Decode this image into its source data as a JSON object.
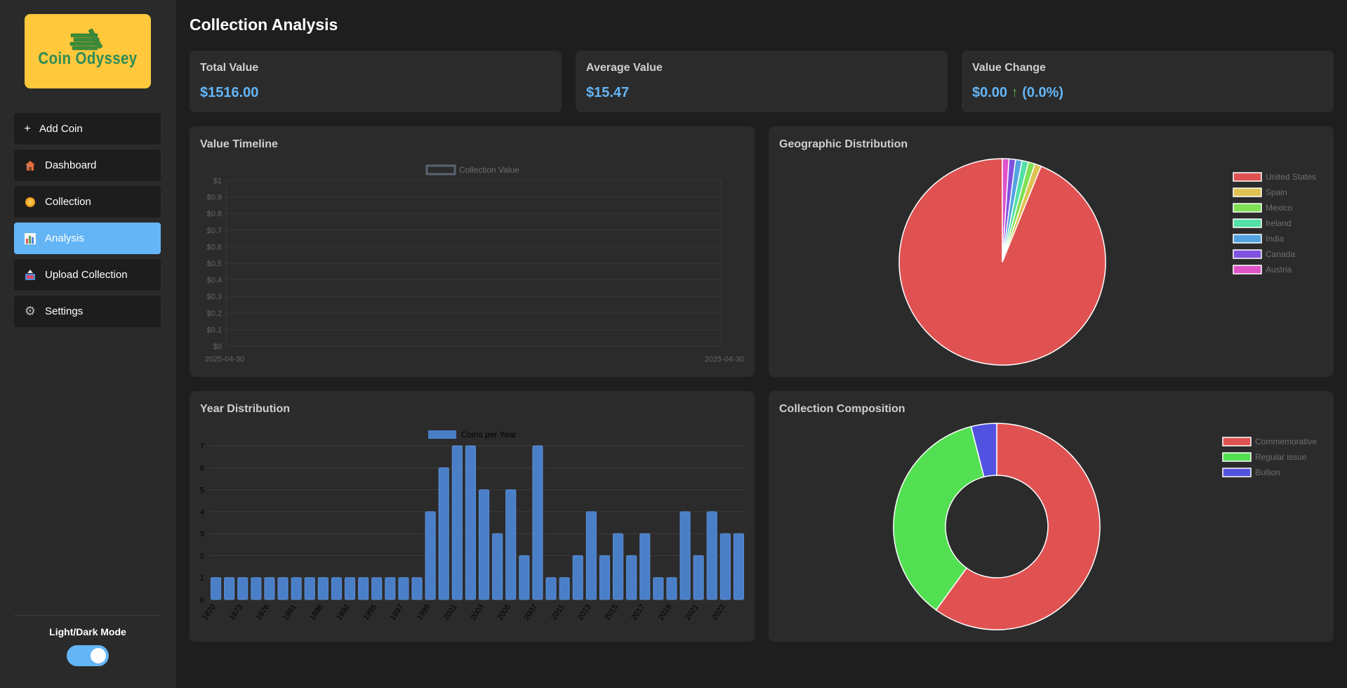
{
  "sidebar": {
    "logo_text": "Coin Odyssey",
    "items": [
      {
        "label": "Add Coin",
        "icon": "plus-icon",
        "glyph": "+"
      },
      {
        "label": "Dashboard",
        "icon": "house-icon",
        "glyph": "🏠"
      },
      {
        "label": "Collection",
        "icon": "coin-icon",
        "glyph": ""
      },
      {
        "label": "Analysis",
        "icon": "bar-chart-icon",
        "glyph": ""
      },
      {
        "label": "Upload Collection",
        "icon": "upload-icon",
        "glyph": ""
      },
      {
        "label": "Settings",
        "icon": "gear-icon",
        "glyph": "⚙"
      }
    ],
    "active_item": "Analysis",
    "mode_label": "Light/Dark Mode",
    "dark_mode_on": true
  },
  "page_title": "Collection Analysis",
  "stats": {
    "total_label": "Total Value",
    "total_value": "$1516.00",
    "average_label": "Average Value",
    "average_value": "$15.47",
    "change_label": "Value Change",
    "change_amount": "$0.00",
    "change_arrow": "↑",
    "change_percent": "(0.0%)"
  },
  "colors": {
    "accent": "#64b5f6",
    "card_bg": "#2b2b2b",
    "page_bg": "#1e1e1e",
    "positive": "#4caf50",
    "logo_bg": "#ffc83d",
    "logo_text": "#2e8b57"
  },
  "cards": {
    "timeline_title": "Value Timeline",
    "geo_title": "Geographic Distribution",
    "year_title": "Year Distribution",
    "composition_title": "Collection Composition"
  },
  "chart_data": [
    {
      "type": "line",
      "title": "Value Timeline",
      "legend": [
        "Collection Value"
      ],
      "legend_position": "top",
      "x_labels": [
        "2025-04-30",
        "2025-04-30"
      ],
      "series": [
        {
          "name": "Collection Value",
          "values": []
        }
      ],
      "ylim": [
        0,
        1
      ],
      "y_ticks": [
        "$0",
        "$0.1",
        "$0.2",
        "$0.3",
        "$0.4",
        "$0.5",
        "$0.6",
        "$0.7",
        "$0.8",
        "$0.9",
        "$1"
      ],
      "grid": true
    },
    {
      "type": "pie",
      "title": "Geographic Distribution",
      "legend_position": "right",
      "labels": [
        "United States",
        "Spain",
        "Mexico",
        "Ireland",
        "India",
        "Canada",
        "Austria"
      ],
      "values": [
        92,
        1,
        1,
        1,
        1,
        1,
        1
      ],
      "colors": [
        "#e05252",
        "#e0c252",
        "#7ee052",
        "#52e0a6",
        "#52a3e0",
        "#8052e0",
        "#e052c8"
      ]
    },
    {
      "type": "bar",
      "title": "Year Distribution",
      "legend": [
        "Coins per Year"
      ],
      "legend_position": "top",
      "series_name": "Coins per Year",
      "categories": [
        "1870",
        "1871",
        "1873",
        "1875",
        "1876",
        "1878",
        "1881",
        "1882",
        "1886",
        "1888",
        "1892",
        "1893",
        "1995",
        "1996",
        "1997",
        "1998",
        "1999",
        "2000",
        "2001",
        "2002",
        "2003",
        "2004",
        "2005",
        "2006",
        "2007",
        "2010",
        "2011",
        "2012",
        "2013",
        "2014",
        "2015",
        "2016",
        "2017",
        "2018",
        "2019",
        "2020",
        "2021",
        "2022",
        "2023",
        "2024"
      ],
      "tick_labels": [
        "1870",
        "1873",
        "1876",
        "1881",
        "1886",
        "1892",
        "1995",
        "1997",
        "1999",
        "2001",
        "2003",
        "2005",
        "2007",
        "2011",
        "2013",
        "2015",
        "2017",
        "2019",
        "2021",
        "2023"
      ],
      "values": [
        1,
        1,
        1,
        1,
        1,
        1,
        1,
        1,
        1,
        1,
        1,
        1,
        1,
        1,
        1,
        1,
        4,
        6,
        7,
        7,
        5,
        3,
        5,
        2,
        7,
        1,
        1,
        2,
        4,
        2,
        3,
        2,
        3,
        1,
        1,
        4,
        2,
        4,
        3,
        3
      ],
      "ylim": [
        0,
        7
      ],
      "y_ticks": [
        "0",
        "1",
        "2",
        "3",
        "4",
        "5",
        "6",
        "7"
      ],
      "grid": true,
      "color": "#4a7fc8"
    },
    {
      "type": "doughnut",
      "title": "Collection Composition",
      "legend_position": "right",
      "labels": [
        "Commemorative",
        "Regular issue",
        "Bullion"
      ],
      "values": [
        60,
        36,
        4
      ],
      "colors": [
        "#e05252",
        "#52e052",
        "#5252e0"
      ]
    }
  ]
}
